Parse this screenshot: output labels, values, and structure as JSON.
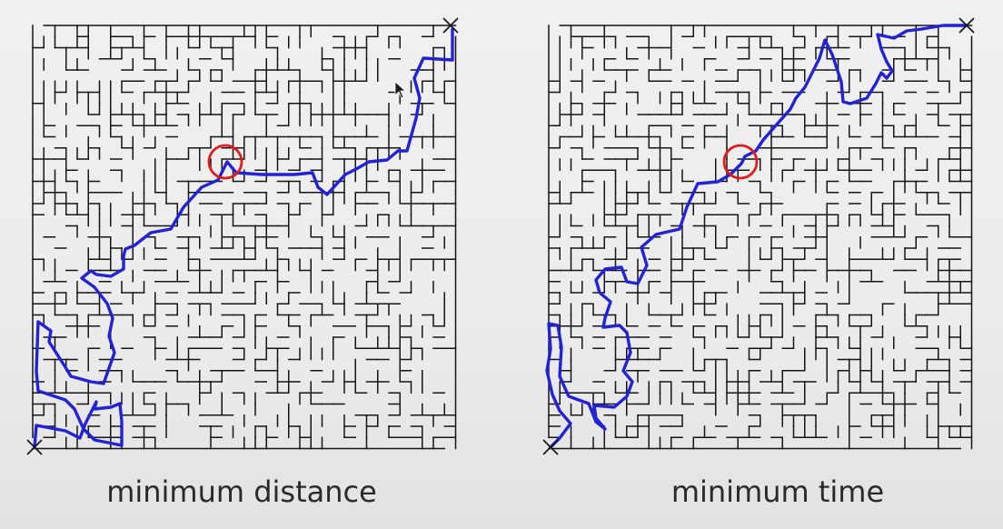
{
  "panels": {
    "left": {
      "caption": "minimum distance",
      "path_color": "#2323d6",
      "marker_color": "#e11a1a"
    },
    "right": {
      "caption": "minimum time",
      "path_color": "#2323d6",
      "marker_color": "#e11a1a"
    }
  },
  "icons": {
    "start": "cross-mark-icon",
    "end": "cross-mark-icon",
    "cursor": "mouse-pointer-icon"
  }
}
